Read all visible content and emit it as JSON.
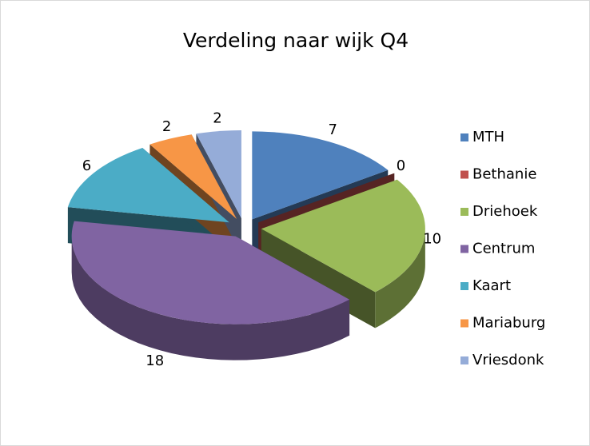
{
  "chart_data": {
    "type": "pie",
    "title": "Verdeling naar wijk Q4",
    "categories": [
      "MTH",
      "Bethanie",
      "Driehoek",
      "Centrum",
      "Kaart",
      "Mariaburg",
      "Vriesdonk"
    ],
    "values": [
      7,
      0,
      10,
      18,
      6,
      2,
      2
    ],
    "colors": [
      "#4f81bd",
      "#c0504d",
      "#9bbb59",
      "#8064a2",
      "#4bacc6",
      "#f79646",
      "#95acd8"
    ],
    "legend": "right"
  }
}
